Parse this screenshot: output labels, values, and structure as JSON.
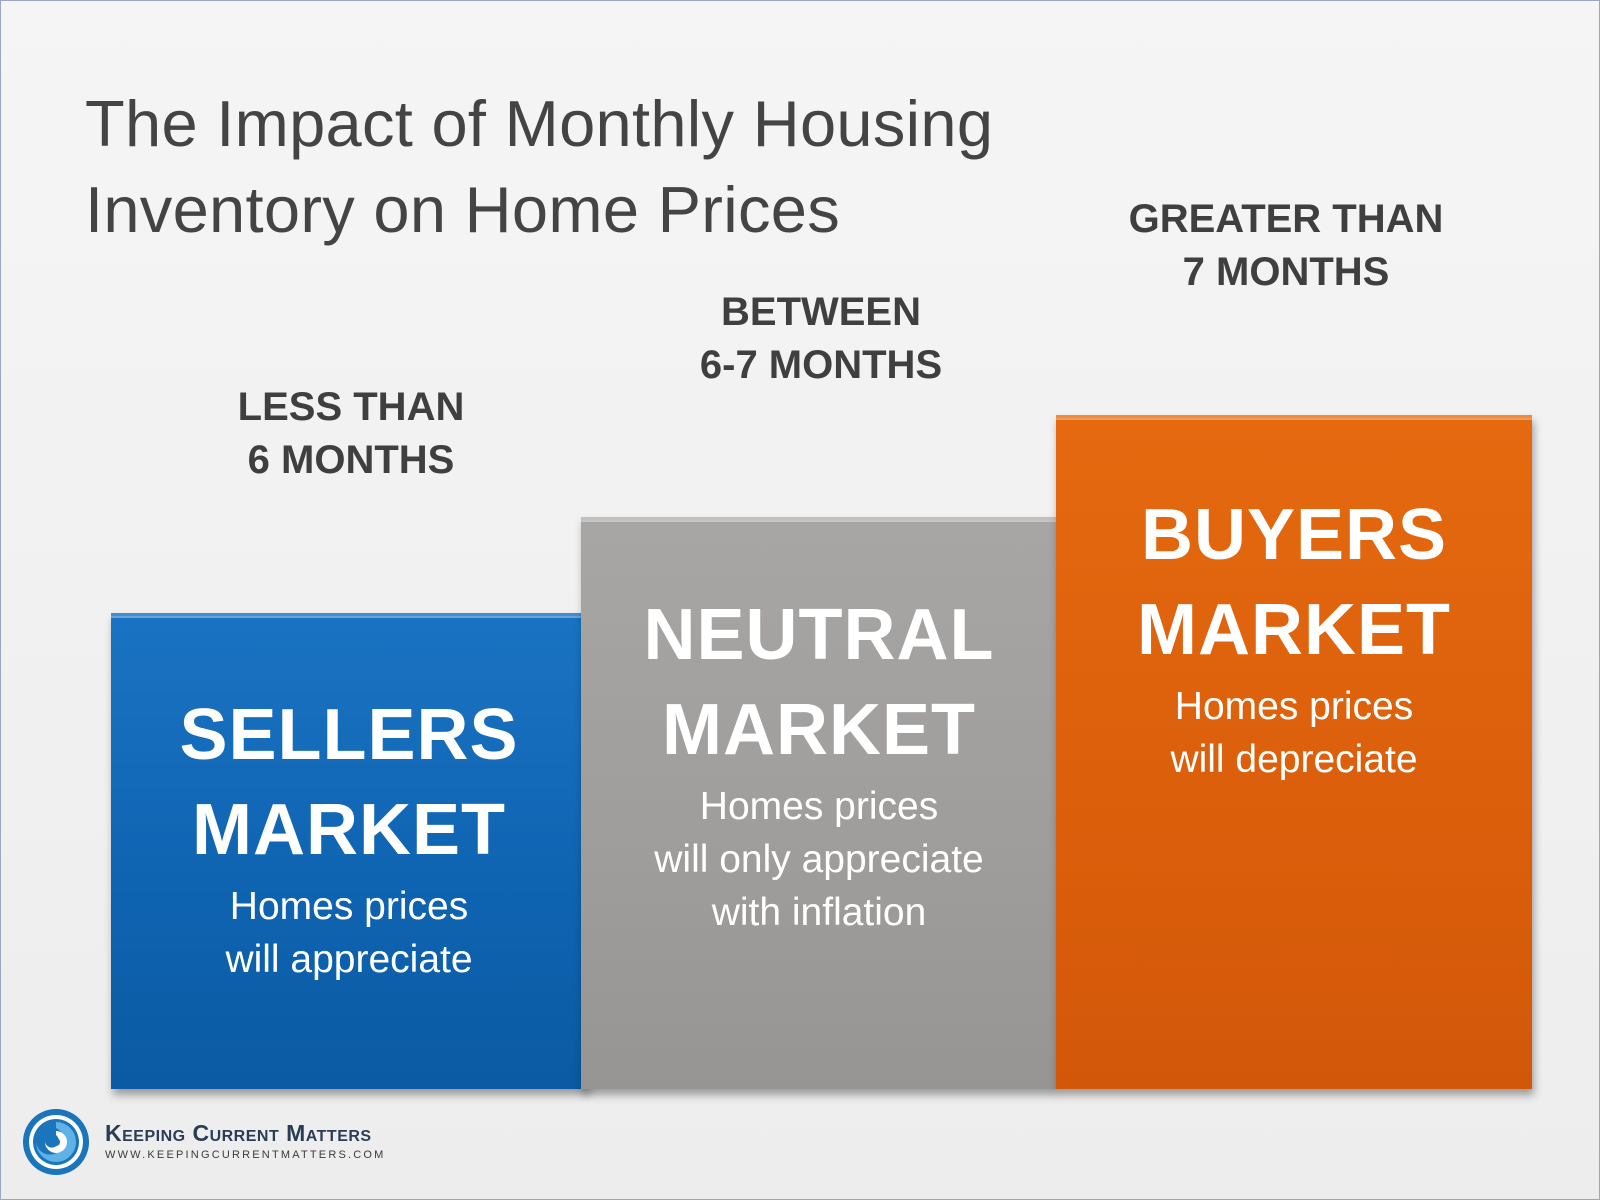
{
  "title": {
    "line1": "The Impact of Monthly Housing",
    "line2": "Inventory on Home Prices"
  },
  "chart_data": {
    "type": "bar",
    "title": "The Impact of Monthly Housing Inventory on Home Prices",
    "categories": [
      "LESS THAN 6 MONTHS",
      "BETWEEN 6-7 MONTHS",
      "GREATER THAN 7 MONTHS"
    ],
    "values": [
      1,
      2,
      3
    ],
    "colors": [
      "#0e63b0",
      "#9f9d9b",
      "#db5f0b"
    ],
    "grid": false,
    "bars": [
      {
        "range": [
          "LESS THAN",
          "6 MONTHS"
        ],
        "market": [
          "SELLERS",
          "MARKET"
        ],
        "description": [
          "Homes prices",
          "will appreciate"
        ]
      },
      {
        "range": [
          "BETWEEN",
          "6-7 MONTHS"
        ],
        "market": [
          "NEUTRAL",
          "MARKET"
        ],
        "description": [
          "Homes prices",
          "will only appreciate",
          "with inflation"
        ]
      },
      {
        "range": [
          "GREATER THAN",
          "7 MONTHS"
        ],
        "market": [
          "BUYERS",
          "MARKET"
        ],
        "description": [
          "Homes prices",
          "will depreciate"
        ]
      }
    ]
  },
  "footer": {
    "brand_name": "Keeping Current Matters",
    "brand_url": "WWW.KEEPINGCURRENTMATTERS.COM",
    "logo_icon": "swirl-logo-icon",
    "logo_color": "#1b75bb"
  }
}
